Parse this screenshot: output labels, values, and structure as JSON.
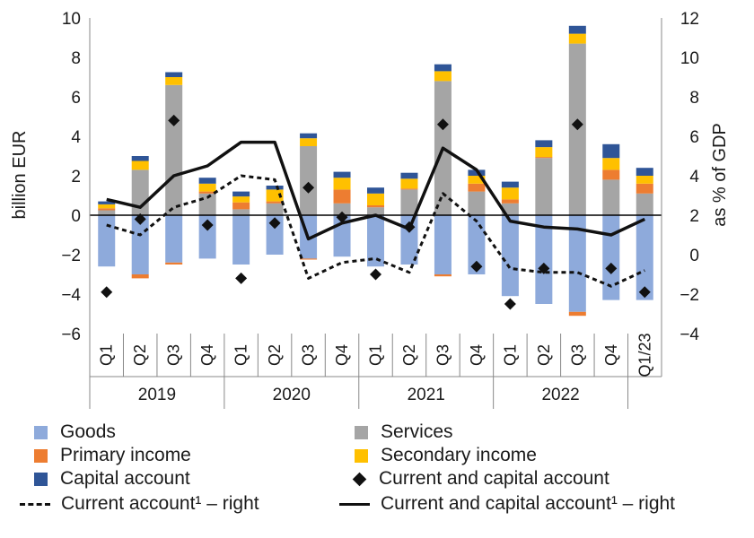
{
  "chart_data": {
    "type": "bar",
    "title": "",
    "ylabel_left": "billion EUR",
    "ylabel_right": "as % of GDP",
    "ylim_left": [
      -6,
      10
    ],
    "ylim_right": [
      -4,
      12
    ],
    "yticks_left": [
      "10",
      "8",
      "6",
      "4",
      "2",
      "0",
      "−2",
      "−4",
      "−6"
    ],
    "yticks_right": [
      "12",
      "10",
      "8",
      "6",
      "4",
      "2",
      "0",
      "−2",
      "−4"
    ],
    "categories": [
      "Q1",
      "Q2",
      "Q3",
      "Q4",
      "Q1",
      "Q2",
      "Q3",
      "Q4",
      "Q1",
      "Q2",
      "Q3",
      "Q4",
      "Q1",
      "Q2",
      "Q3",
      "Q4",
      "Q1/23"
    ],
    "years": [
      {
        "label": "2019",
        "start": 0,
        "count": 4
      },
      {
        "label": "2020",
        "start": 4,
        "count": 4
      },
      {
        "label": "2021",
        "start": 8,
        "count": 4
      },
      {
        "label": "2022",
        "start": 12,
        "count": 4
      }
    ],
    "stacked_series": [
      {
        "name": "Goods",
        "color": "#8EAADB",
        "values": [
          -2.6,
          -3.0,
          -2.4,
          -2.2,
          -2.5,
          -2.0,
          -2.2,
          -2.1,
          -2.6,
          -2.5,
          -3.0,
          -3.0,
          -4.1,
          -4.5,
          -4.9,
          -4.3,
          -4.3
        ]
      },
      {
        "name": "Services",
        "color": "#A5A5A5",
        "values": [
          0.25,
          2.3,
          6.6,
          1.1,
          0.3,
          0.6,
          3.5,
          0.6,
          0.4,
          1.3,
          6.8,
          1.2,
          0.6,
          2.9,
          8.7,
          1.8,
          1.1
        ]
      },
      {
        "name": "Primary income",
        "color": "#ED7D31",
        "values": [
          0.1,
          -0.2,
          -0.1,
          0.1,
          0.35,
          0.1,
          -0.05,
          0.7,
          0.1,
          0.05,
          -0.1,
          0.4,
          0.2,
          0.05,
          -0.2,
          0.5,
          0.5
        ]
      },
      {
        "name": "Secondary income",
        "color": "#FFC000",
        "values": [
          0.2,
          0.45,
          0.4,
          0.4,
          0.3,
          0.6,
          0.4,
          0.6,
          0.6,
          0.5,
          0.5,
          0.4,
          0.6,
          0.5,
          0.5,
          0.6,
          0.4
        ]
      },
      {
        "name": "Capital account",
        "color": "#2F5597",
        "values": [
          0.15,
          0.25,
          0.25,
          0.3,
          0.25,
          0.2,
          0.25,
          0.3,
          0.3,
          0.3,
          0.35,
          0.3,
          0.3,
          0.35,
          0.4,
          0.7,
          0.4
        ]
      }
    ],
    "markers": {
      "name": "Current and capital account",
      "values": [
        -3.9,
        -0.2,
        4.8,
        -0.5,
        -3.2,
        -0.4,
        1.4,
        -0.1,
        -3.0,
        -0.6,
        4.6,
        -2.6,
        -4.5,
        -2.7,
        4.6,
        -2.7,
        -3.9
      ]
    },
    "lines": [
      {
        "name": "Current account¹ – right",
        "style": "dashed",
        "values": [
          1.5,
          1.0,
          2.4,
          2.9,
          4.0,
          3.8,
          -1.2,
          -0.4,
          -0.2,
          -0.9,
          3.1,
          1.7,
          -0.7,
          -0.9,
          -0.9,
          -1.6,
          -0.8
        ]
      },
      {
        "name": "Current and capital account¹ – right",
        "style": "solid",
        "values": [
          2.8,
          2.4,
          4.0,
          4.5,
          5.7,
          5.7,
          0.8,
          1.6,
          2.0,
          1.3,
          5.4,
          4.3,
          1.7,
          1.4,
          1.3,
          1.0,
          1.8
        ]
      }
    ]
  },
  "legend": {
    "goods": "Goods",
    "services": "Services",
    "primary_income": "Primary income",
    "secondary_income": "Secondary income",
    "capital_account": "Capital account",
    "current_and_capital": "Current and capital account",
    "current_account_right": "Current account¹ – right",
    "current_and_capital_right": "Current and capital account¹ – right"
  },
  "colors": {
    "goods": "#8EAADB",
    "services": "#A5A5A5",
    "primary_income": "#ED7D31",
    "secondary_income": "#FFC000",
    "capital_account": "#2F5597",
    "lines": "#111111"
  }
}
